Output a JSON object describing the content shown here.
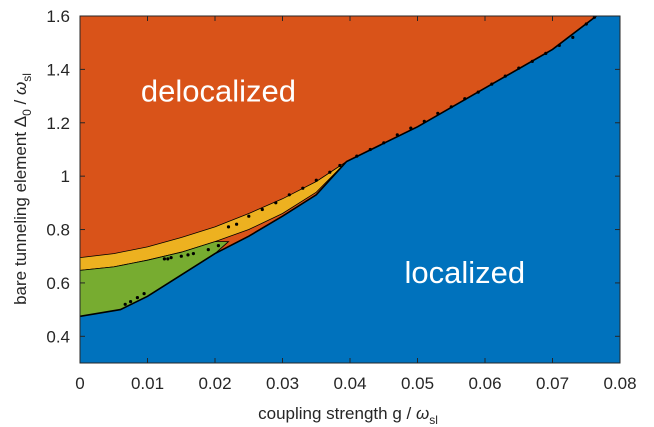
{
  "chart_data": {
    "type": "area",
    "xlabel": {
      "text": "coupling strength g / ",
      "symbol": "ω",
      "subscript": "sl"
    },
    "ylabel": {
      "text": "bare tunneling element Δ",
      "zero": "0",
      "slash": " / ",
      "symbol": "ω",
      "subscript": "sl"
    },
    "xlim": [
      0,
      0.08
    ],
    "ylim": [
      0.3,
      1.6
    ],
    "xticks": [
      0,
      0.01,
      0.02,
      0.03,
      0.04,
      0.05,
      0.06,
      0.07,
      0.08
    ],
    "xtick_labels": [
      "0",
      "0.01",
      "0.02",
      "0.03",
      "0.04",
      "0.05",
      "0.06",
      "0.07",
      "0.08"
    ],
    "yticks": [
      0.4,
      0.6,
      0.8,
      1.0,
      1.2,
      1.4,
      1.6
    ],
    "ytick_labels": [
      "0.4",
      "0.6",
      "0.8",
      "1",
      "1.2",
      "1.4",
      "1.6"
    ],
    "grid": false,
    "regions": [
      {
        "label": "delocalized",
        "color": "#D95319"
      },
      {
        "label": "localized",
        "color": "#0072BD"
      },
      {
        "label": "",
        "color": "#EDB120"
      },
      {
        "label": "",
        "color": "#77AC30"
      }
    ],
    "boundaries": {
      "upper_delocalized": [
        [
          0,
          0.695
        ],
        [
          0.005,
          0.71
        ],
        [
          0.01,
          0.735
        ],
        [
          0.015,
          0.77
        ],
        [
          0.02,
          0.81
        ],
        [
          0.025,
          0.86
        ],
        [
          0.03,
          0.915
        ],
        [
          0.035,
          0.98
        ],
        [
          0.0395,
          1.055
        ],
        [
          0.05,
          1.185
        ],
        [
          0.06,
          1.33
        ],
        [
          0.07,
          1.475
        ],
        [
          0.0765,
          1.6
        ]
      ],
      "yellow_lower": [
        [
          0,
          0.647
        ],
        [
          0.005,
          0.66
        ],
        [
          0.01,
          0.685
        ],
        [
          0.015,
          0.715
        ],
        [
          0.02,
          0.755
        ],
        [
          0.025,
          0.8
        ],
        [
          0.03,
          0.86
        ],
        [
          0.035,
          0.94
        ],
        [
          0.0395,
          1.055
        ]
      ],
      "green_lower": [
        [
          0,
          0.475
        ],
        [
          0.003,
          0.48
        ],
        [
          0.006,
          0.5
        ],
        [
          0.01,
          0.55
        ],
        [
          0.015,
          0.63
        ],
        [
          0.02,
          0.71
        ],
        [
          0.022,
          0.755
        ]
      ],
      "localized_upper": [
        [
          0,
          0.475
        ],
        [
          0.006,
          0.5
        ],
        [
          0.01,
          0.55
        ],
        [
          0.015,
          0.63
        ],
        [
          0.02,
          0.71
        ],
        [
          0.025,
          0.775
        ],
        [
          0.03,
          0.85
        ],
        [
          0.035,
          0.93
        ],
        [
          0.0395,
          1.055
        ],
        [
          0.05,
          1.185
        ],
        [
          0.06,
          1.33
        ],
        [
          0.07,
          1.475
        ],
        [
          0.0765,
          1.6
        ]
      ]
    },
    "markers": [
      [
        0.0067,
        0.52
      ],
      [
        0.0075,
        0.53
      ],
      [
        0.0085,
        0.545
      ],
      [
        0.0095,
        0.56
      ],
      [
        0.0125,
        0.69
      ],
      [
        0.013,
        0.69
      ],
      [
        0.0135,
        0.695
      ],
      [
        0.015,
        0.7
      ],
      [
        0.016,
        0.705
      ],
      [
        0.0168,
        0.71
      ],
      [
        0.019,
        0.725
      ],
      [
        0.0205,
        0.74
      ],
      [
        0.022,
        0.81
      ],
      [
        0.0232,
        0.82
      ],
      [
        0.025,
        0.85
      ],
      [
        0.027,
        0.875
      ],
      [
        0.029,
        0.9
      ],
      [
        0.031,
        0.93
      ],
      [
        0.033,
        0.955
      ],
      [
        0.035,
        0.985
      ],
      [
        0.037,
        1.015
      ],
      [
        0.0385,
        1.04
      ],
      [
        0.041,
        1.075
      ],
      [
        0.043,
        1.1
      ],
      [
        0.045,
        1.125
      ],
      [
        0.047,
        1.155
      ],
      [
        0.049,
        1.18
      ],
      [
        0.051,
        1.205
      ],
      [
        0.053,
        1.235
      ],
      [
        0.055,
        1.26
      ],
      [
        0.057,
        1.29
      ],
      [
        0.059,
        1.315
      ],
      [
        0.061,
        1.345
      ],
      [
        0.063,
        1.375
      ],
      [
        0.065,
        1.405
      ],
      [
        0.067,
        1.43
      ],
      [
        0.069,
        1.46
      ],
      [
        0.071,
        1.49
      ],
      [
        0.073,
        1.52
      ],
      [
        0.075,
        1.57
      ],
      [
        0.0762,
        1.595
      ]
    ],
    "annotations": [
      {
        "text": "delocalized",
        "x": 0.0205,
        "y": 1.28
      },
      {
        "text": "localized",
        "x": 0.057,
        "y": 0.6
      }
    ]
  }
}
